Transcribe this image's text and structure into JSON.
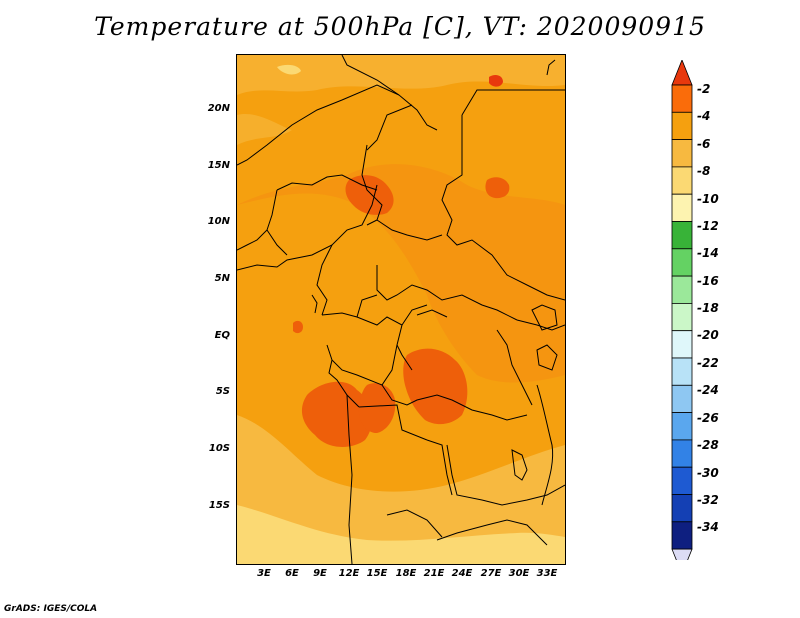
{
  "title": "Temperature at 500hPa [C], VT: 2020090915",
  "credit": "GrADS: IGES/COLA",
  "y_ticks": [
    "20N",
    "15N",
    "10N",
    "5N",
    "EQ",
    "5S",
    "10S",
    "15S"
  ],
  "x_ticks": [
    "3E",
    "6E",
    "9E",
    "12E",
    "15E",
    "18E",
    "21E",
    "24E",
    "27E",
    "30E",
    "33E"
  ],
  "colorbar": {
    "labels": [
      "-2",
      "-4",
      "-6",
      "-8",
      "-10",
      "-12",
      "-14",
      "-16",
      "-18",
      "-20",
      "-22",
      "-24",
      "-26",
      "-28",
      "-30",
      "-32",
      "-34"
    ],
    "colors": [
      "#e8380d",
      "#fa6c0a",
      "#f5a00f",
      "#f7b940",
      "#fbd973",
      "#fdf3b0",
      "#38b338",
      "#64d263",
      "#9be89a",
      "#cbf7c8",
      "#dff7fa",
      "#b8e2f7",
      "#8ec7f2",
      "#5aa7ee",
      "#3282e6",
      "#1e5ad2",
      "#1440b4",
      "#0e1f80",
      "#dcdcf5"
    ]
  },
  "colors": {
    "shade_minus6": "#f5a00f",
    "shade_minus4": "#fa6c0a",
    "shade_minus8": "#f7b940",
    "shade_minus10": "#fbd973",
    "border_line": "#000000"
  }
}
